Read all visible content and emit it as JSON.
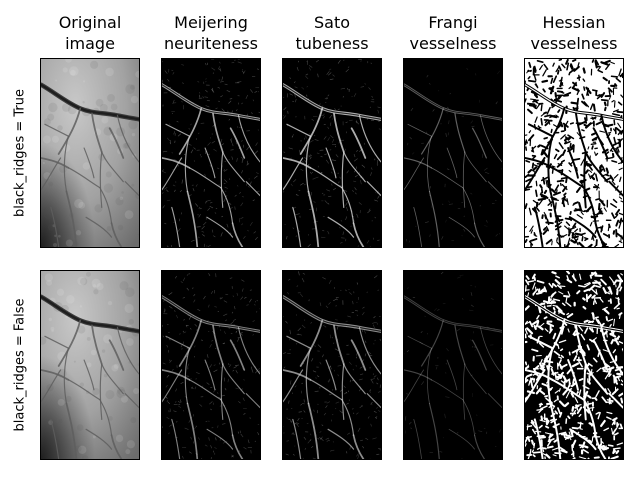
{
  "columns": [
    {
      "title": "Original\nimage",
      "style": "original"
    },
    {
      "title": "Meijering\nneuriteness",
      "style": "meijering"
    },
    {
      "title": "Sato\ntubeness",
      "style": "sato"
    },
    {
      "title": "Frangi\nvesselness",
      "style": "frangi"
    },
    {
      "title": "Hessian\nvesselness",
      "style": "hessian"
    }
  ],
  "rows": [
    {
      "label": "black_ridges = True"
    },
    {
      "label": "black_ridges = False"
    }
  ],
  "colors": {
    "background": "#ffffff",
    "frame": "#000000"
  }
}
